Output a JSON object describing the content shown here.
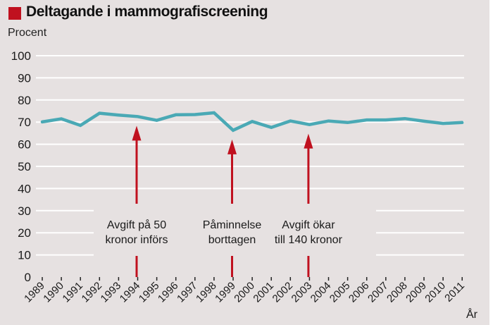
{
  "title": "Deltagande i mammografiscreening",
  "colors": {
    "accent": "#c0111f",
    "line": "#4aa9b5",
    "background": "#e6e1e1",
    "grid": "#ffffff"
  },
  "chart_data": {
    "type": "line",
    "title": "Deltagande i mammografiscreening",
    "ylabel": "Procent",
    "xlabel": "År",
    "ylim": [
      0,
      100
    ],
    "yticks": [
      "0",
      "10",
      "20",
      "30",
      "40",
      "50",
      "60",
      "70",
      "80",
      "90",
      "100"
    ],
    "grid": true,
    "categories": [
      "1989",
      "1990",
      "1991",
      "1992",
      "1993",
      "1994",
      "1995",
      "1996",
      "1997",
      "1998",
      "1999",
      "2000",
      "2001",
      "2002",
      "2003",
      "2004",
      "2005",
      "2006",
      "2007",
      "2008",
      "2009",
      "2010",
      "2011"
    ],
    "series": [
      {
        "name": "Deltagande",
        "values": [
          70.1,
          71.5,
          68.5,
          74.0,
          73.2,
          72.5,
          70.8,
          73.3,
          73.4,
          74.2,
          66.3,
          70.3,
          67.6,
          70.5,
          68.9,
          70.5,
          69.8,
          71.0,
          71.0,
          71.6,
          70.4,
          69.4,
          69.8
        ]
      }
    ],
    "annotations": [
      {
        "year": "1994",
        "lines": [
          "Avgift på 50",
          "kronor införs"
        ],
        "value": 72.5
      },
      {
        "year": "1999",
        "lines": [
          "Påminnelse",
          "borttagen"
        ],
        "value": 66.3
      },
      {
        "year": "2003",
        "lines": [
          "Avgift ökar",
          "till 140 kronor"
        ],
        "value": 68.9
      }
    ]
  }
}
